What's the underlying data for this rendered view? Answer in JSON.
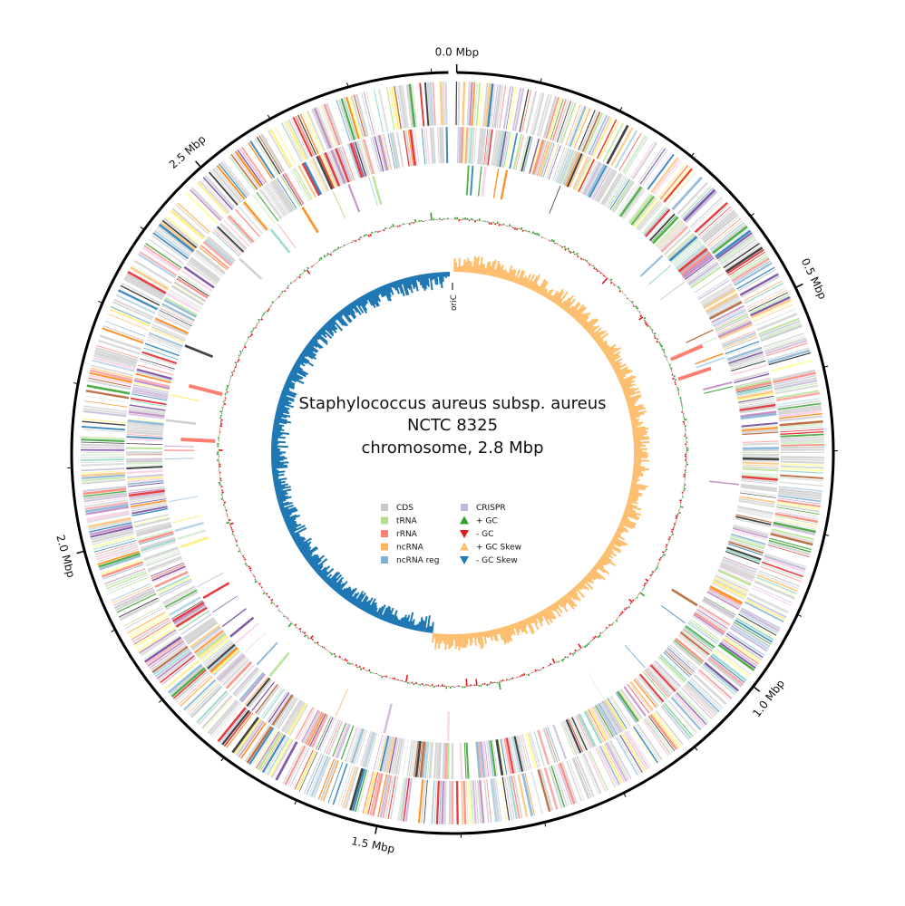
{
  "title": {
    "line1": "Staphylococcus aureus subsp. aureus",
    "line2": "NCTC 8325",
    "line3": "chromosome, 2.8 Mbp"
  },
  "genome_size_mbp": 2.82,
  "axis": {
    "major_ticks": [
      {
        "value": 0.0,
        "label": "0.0 Mbp"
      },
      {
        "value": 0.5,
        "label": "0.5 Mbp"
      },
      {
        "value": 1.0,
        "label": "1.0 Mbp"
      },
      {
        "value": 1.5,
        "label": "1.5 Mbp"
      },
      {
        "value": 2.0,
        "label": "2.0 Mbp"
      },
      {
        "value": 2.5,
        "label": "2.5 Mbp"
      }
    ],
    "minor_tick_step_mbp": 0.1
  },
  "ori_label": "oriC",
  "legend": {
    "column1": [
      {
        "label": "CDS",
        "color": "#c8c8c8",
        "marker": "square"
      },
      {
        "label": "tRNA",
        "color": "#b2df8a",
        "marker": "square"
      },
      {
        "label": "rRNA",
        "color": "#fb8072",
        "marker": "square"
      },
      {
        "label": "ncRNA",
        "color": "#fdb462",
        "marker": "square"
      },
      {
        "label": "ncRNA reg",
        "color": "#80b1d3",
        "marker": "square"
      }
    ],
    "column2": [
      {
        "label": "CRISPR",
        "color": "#bebada",
        "marker": "square"
      },
      {
        "label": "+ GC",
        "color": "#33a02c",
        "marker": "triangle-up"
      },
      {
        "label": "- GC",
        "color": "#e31a1c",
        "marker": "triangle-down"
      },
      {
        "label": "+ GC Skew",
        "color": "#fdbf6f",
        "marker": "triangle-up"
      },
      {
        "label": "- GC Skew",
        "color": "#1f78b4",
        "marker": "triangle-down"
      }
    ]
  },
  "colors": {
    "axis": "#000000",
    "gc_plus": "#33a02c",
    "gc_minus": "#e31a1c",
    "skew_plus": "#fdbf6f",
    "skew_minus": "#1f78b4",
    "feature_palette": [
      "#c8c8c8",
      "#a6cee3",
      "#1f78b4",
      "#b2df8a",
      "#33a02c",
      "#fb9a99",
      "#e31a1c",
      "#fdbf6f",
      "#ff7f00",
      "#cab2d6",
      "#6a3d9a",
      "#ffff99",
      "#b15928",
      "#8dd3c7",
      "#bebada",
      "#fb8072",
      "#80b1d3",
      "#fccde5",
      "#d9d9d9",
      "#bc80bd",
      "#ccebc5",
      "#ffed6f",
      "#222222"
    ]
  },
  "chart_data": {
    "type": "circular-genome",
    "tracks": [
      "CDS forward",
      "CDS reverse",
      "rRNA/tRNA/ncRNA",
      "GC content",
      "GC skew"
    ],
    "gc_skew_switch_mbp": 1.46,
    "notable_features": [
      {
        "type": "rRNA",
        "position_mbp": 0.52
      },
      {
        "type": "rRNA",
        "position_mbp": 0.56
      },
      {
        "type": "rRNA",
        "position_mbp": 2.23
      },
      {
        "type": "rRNA",
        "position_mbp": 2.14
      }
    ]
  }
}
